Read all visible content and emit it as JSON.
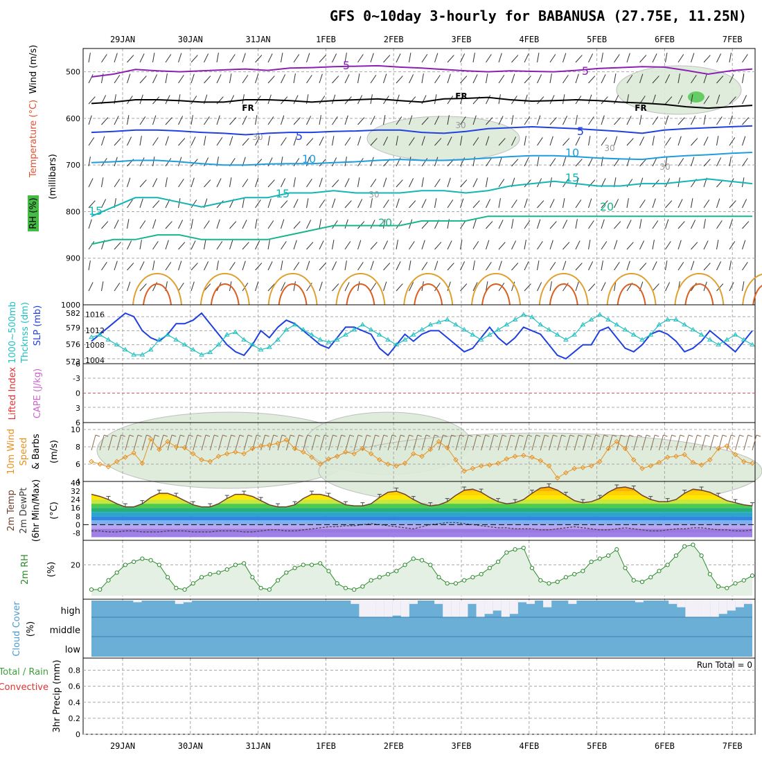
{
  "title": "GFS 0~10day 3-hourly for BABANUSA (27.75E, 11.25N)",
  "date_labels": [
    "29JAN",
    "30JAN",
    "31JAN",
    "1FEB",
    "2FEB",
    "3FEB",
    "4FEB",
    "5FEB",
    "6FEB",
    "7FEB"
  ],
  "colors": {
    "frame": "#000000",
    "grid": "#a0a0a0",
    "rh_fill": "#e3f0e3",
    "cloud": "#6baed6",
    "cloud_clear": "#f4f0f8"
  },
  "chart_data": [
    {
      "type": "heatmap",
      "name": "upper_air",
      "ylabel_parts": [
        "Wind",
        "(m/s)",
        "Temperature",
        "(°C)",
        "RH",
        "(%)",
        "(millibars)"
      ],
      "y_ticks": [
        500,
        600,
        700,
        800,
        900,
        1000
      ],
      "ylim": [
        1000,
        450
      ],
      "contour_labels": [
        "5",
        "5",
        "FR",
        "FR",
        "FR",
        "5",
        "5",
        "10",
        "10",
        "15",
        "15",
        "15",
        "20",
        "20",
        "30",
        "30",
        "30",
        "30",
        "30"
      ],
      "isotherms": [
        {
          "label": "5 (500mb)",
          "color": "#8a1fb3",
          "pressure": [
            511,
            505,
            495,
            498,
            500,
            498,
            496,
            494,
            497,
            492,
            491,
            489,
            488,
            487,
            490,
            492,
            495,
            498,
            500,
            498,
            499,
            500,
            497,
            493,
            491,
            489,
            490,
            497,
            505,
            498,
            494
          ]
        },
        {
          "label": "FR",
          "color": "#000000",
          "pressure": [
            568,
            565,
            560,
            560,
            562,
            565,
            565,
            560,
            560,
            562,
            565,
            562,
            560,
            558,
            562,
            565,
            558,
            557,
            555,
            560,
            563,
            562,
            560,
            562,
            565,
            567,
            570,
            575,
            578,
            575,
            572
          ]
        },
        {
          "label": "5 (600-650mb)",
          "color": "#1f3fe0",
          "pressure": [
            630,
            628,
            625,
            625,
            627,
            630,
            632,
            635,
            632,
            630,
            630,
            628,
            627,
            625,
            625,
            630,
            632,
            628,
            622,
            620,
            618,
            620,
            622,
            625,
            628,
            632,
            625,
            622,
            620,
            618,
            616
          ]
        },
        {
          "label": "10",
          "color": "#1f9be0",
          "pressure": [
            695,
            693,
            690,
            690,
            693,
            697,
            700,
            700,
            698,
            697,
            697,
            695,
            693,
            690,
            688,
            690,
            690,
            688,
            685,
            682,
            680,
            680,
            682,
            685,
            687,
            688,
            683,
            680,
            678,
            675,
            673
          ]
        },
        {
          "label": "15",
          "color": "#12b5b5",
          "pressure": [
            810,
            790,
            770,
            770,
            780,
            790,
            780,
            770,
            770,
            760,
            760,
            755,
            760,
            760,
            760,
            755,
            755,
            760,
            755,
            745,
            740,
            735,
            740,
            745,
            745,
            740,
            740,
            735,
            730,
            735,
            740
          ]
        },
        {
          "label": "20",
          "color": "#17b58a",
          "pressure": [
            870,
            860,
            860,
            850,
            850,
            860,
            860,
            860,
            860,
            850,
            840,
            830,
            830,
            830,
            830,
            820,
            820,
            820,
            810,
            810,
            810,
            810,
            810,
            810,
            810,
            810,
            810,
            810,
            810,
            810,
            810
          ]
        }
      ]
    },
    {
      "type": "line",
      "name": "slp_thickness",
      "ylabel_parts": [
        "1000~500mb",
        "Thcknss (dm)",
        "SLP (mb)"
      ],
      "left_ticks": [
        "582",
        "579",
        "576",
        "573"
      ],
      "right_ticks": [
        "1016",
        "1012",
        "1008",
        "1004"
      ],
      "series": [
        {
          "name": "SLP (mb)",
          "color": "#1f3fe0",
          "values": [
            1009,
            1011,
            1013,
            1015,
            1017,
            1016,
            1012,
            1010,
            1009,
            1011,
            1014,
            1014,
            1015,
            1017,
            1014,
            1011,
            1008,
            1006,
            1005,
            1008,
            1012,
            1010,
            1013,
            1015,
            1014,
            1012,
            1010,
            1008,
            1007,
            1010,
            1013,
            1013,
            1012,
            1011,
            1007,
            1005,
            1008,
            1011,
            1009,
            1011,
            1012,
            1012,
            1010,
            1008,
            1006,
            1007,
            1010,
            1013,
            1010,
            1008,
            1010,
            1013,
            1012,
            1011,
            1008,
            1005,
            1004,
            1006,
            1008,
            1008,
            1012,
            1013,
            1010,
            1007,
            1006,
            1008,
            1011,
            1012,
            1011,
            1009,
            1006,
            1007,
            1009,
            1012,
            1010,
            1008,
            1006,
            1009,
            1012
          ]
        },
        {
          "name": "Thickness (dm)",
          "color": "#20c0c0",
          "values": [
            577.5,
            578,
            577,
            576,
            575,
            574,
            574,
            575,
            577,
            578,
            577,
            576,
            575,
            574,
            574.5,
            576,
            578,
            578.5,
            577,
            576,
            575,
            575.5,
            577,
            579,
            580,
            579,
            578,
            577,
            576.5,
            577,
            578,
            579,
            580,
            579,
            578,
            577,
            576,
            577,
            578,
            579,
            580,
            580.5,
            581,
            580,
            579,
            578,
            577,
            578,
            579,
            580,
            581,
            582,
            581.5,
            580,
            579,
            578,
            577,
            578,
            580,
            581,
            582,
            581,
            580,
            579,
            578,
            577,
            578,
            580,
            581,
            581,
            580,
            579,
            578,
            577,
            576,
            577,
            578,
            577,
            576
          ]
        }
      ]
    },
    {
      "type": "line",
      "name": "cape_li",
      "ylabel_parts": [
        "Lifted Index",
        "CAPE (J/kg)"
      ],
      "y_ticks": [
        "-6",
        "-3",
        "0",
        "3",
        "6"
      ],
      "ylim": [
        -6,
        6
      ],
      "values": []
    },
    {
      "type": "line",
      "name": "wind10m",
      "ylabel_parts": [
        "10m Wind",
        "Speed",
        "& Barbs",
        "(m/s)"
      ],
      "y_ticks": [
        "10",
        "8",
        "6",
        "4"
      ],
      "ylim": [
        4,
        10.8
      ],
      "series": [
        {
          "name": "10m Wind Speed",
          "color": "#e89020",
          "values": [
            6.3,
            6.0,
            5.7,
            6.3,
            6.8,
            7.3,
            6.1,
            8.9,
            7.7,
            8.6,
            8.0,
            7.9,
            7.2,
            6.5,
            6.3,
            6.9,
            7.2,
            7.4,
            7.2,
            7.8,
            8.1,
            8.2,
            8.4,
            8.8,
            7.8,
            7.4,
            6.8,
            6.0,
            6.6,
            6.9,
            7.4,
            7.2,
            7.8,
            7.2,
            6.5,
            6.0,
            5.8,
            6.1,
            7.2,
            6.9,
            7.7,
            8.6,
            7.9,
            6.5,
            5.2,
            5.5,
            5.8,
            5.9,
            6.1,
            6.6,
            6.9,
            7.0,
            6.8,
            6.4,
            5.8,
            4.4,
            5.0,
            5.5,
            5.6,
            5.8,
            6.3,
            7.8,
            8.6,
            7.8,
            6.5,
            5.5,
            5.8,
            6.2,
            6.8,
            6.9,
            7.1,
            6.2,
            5.9,
            6.5,
            7.8,
            8.1,
            7.1,
            6.3,
            6.1
          ]
        }
      ]
    },
    {
      "type": "area",
      "name": "temp2m",
      "ylabel_parts": [
        "2m Temp",
        "2m DewPt",
        "(6hr Min/Max)",
        "(°C)"
      ],
      "y_ticks": [
        "40",
        "32",
        "24",
        "16",
        "8",
        "0",
        "-8"
      ],
      "ylim": [
        -15,
        40
      ],
      "series": [
        {
          "name": "2m Temp",
          "color": "#704030",
          "values": [
            29,
            27,
            24,
            20,
            17,
            17,
            20,
            26,
            30,
            30,
            27,
            23,
            19,
            17,
            17,
            20,
            25,
            29,
            29,
            27,
            23,
            19,
            17,
            17,
            19,
            25,
            29,
            29,
            27,
            23,
            19,
            18,
            18,
            20,
            26,
            31,
            32,
            29,
            24,
            20,
            18,
            19,
            22,
            28,
            33,
            34,
            31,
            26,
            22,
            20,
            21,
            24,
            30,
            35,
            36,
            33,
            28,
            23,
            21,
            22,
            25,
            31,
            35,
            36,
            34,
            28,
            24,
            22,
            22,
            24,
            30,
            34,
            33,
            31,
            27,
            23,
            21,
            19,
            18
          ]
        },
        {
          "name": "2m DewPt",
          "color": "#404040",
          "values": [
            -6,
            -6,
            -7,
            -7,
            -6,
            -6,
            -7,
            -7,
            -7,
            -6,
            -6,
            -6,
            -7,
            -7,
            -7,
            -6,
            -6,
            -6,
            -7,
            -7,
            -6,
            -5,
            -5,
            -6,
            -6,
            -5,
            -4,
            -3,
            -2,
            -2,
            -1,
            -1,
            0,
            1,
            0,
            -1,
            -2,
            -3,
            -4,
            -2,
            0,
            1,
            2,
            2,
            1,
            0,
            -1,
            -2,
            -3,
            -3,
            -4,
            -4,
            -4,
            -5,
            -5,
            -4,
            -3,
            -2,
            -3,
            -4,
            -5,
            -5,
            -4,
            -3,
            -4,
            -5,
            -6,
            -6,
            -5,
            -4,
            -4,
            -3,
            -3,
            -4,
            -5,
            -5,
            -6,
            -6,
            -5
          ]
        }
      ]
    },
    {
      "type": "area",
      "name": "rh2m",
      "ylabel_parts": [
        "2m RH",
        "(%)"
      ],
      "y_ticks": [
        "20"
      ],
      "ylim": [
        0,
        35
      ],
      "series": [
        {
          "name": "2m RH",
          "color": "#2a8a2a",
          "values": [
            4,
            4,
            10,
            15,
            20,
            22,
            24,
            23,
            20,
            12,
            5,
            4,
            8,
            12,
            14,
            15,
            17,
            20,
            21,
            12,
            5,
            4,
            10,
            15,
            18,
            20,
            20,
            21,
            16,
            8,
            5,
            4,
            6,
            10,
            12,
            14,
            16,
            20,
            24,
            23,
            20,
            12,
            8,
            8,
            10,
            12,
            14,
            18,
            22,
            28,
            30,
            31,
            18,
            10,
            8,
            9,
            12,
            14,
            16,
            22,
            24,
            26,
            30,
            18,
            10,
            9,
            12,
            16,
            20,
            26,
            32,
            33,
            26,
            14,
            6,
            5,
            8,
            10,
            13
          ]
        }
      ]
    },
    {
      "type": "bar",
      "name": "cloud_cover",
      "ylabel_parts": [
        "Cloud Cover",
        "(%)"
      ],
      "y_ticks": [
        "high",
        "middle",
        "low"
      ],
      "series": [
        {
          "name": "high cloud cover (% clear fraction)",
          "values": [
            0,
            0,
            0,
            0,
            0,
            10,
            0,
            0,
            0,
            0,
            20,
            10,
            0,
            0,
            0,
            0,
            0,
            0,
            0,
            0,
            0,
            0,
            0,
            0,
            0,
            0,
            0,
            0,
            0,
            0,
            0,
            20,
            100,
            100,
            100,
            100,
            90,
            100,
            20,
            0,
            0,
            20,
            100,
            100,
            100,
            20,
            100,
            80,
            60,
            100,
            80,
            10,
            20,
            0,
            40,
            0,
            0,
            20,
            0,
            0,
            0,
            0,
            0,
            0,
            0,
            10,
            0,
            0,
            0,
            20,
            40,
            100,
            100,
            100,
            100,
            80,
            60,
            40,
            20
          ]
        }
      ]
    },
    {
      "type": "bar",
      "name": "precip",
      "ylabel_parts": [
        "Total / Rain",
        "Convective",
        "3hr Precip (mm)"
      ],
      "y_ticks": [
        "0.8",
        "0.6",
        "0.4",
        "0.2",
        "0"
      ],
      "ylim": [
        0,
        0.9
      ],
      "run_total": "Run Total = 0",
      "values": []
    }
  ]
}
